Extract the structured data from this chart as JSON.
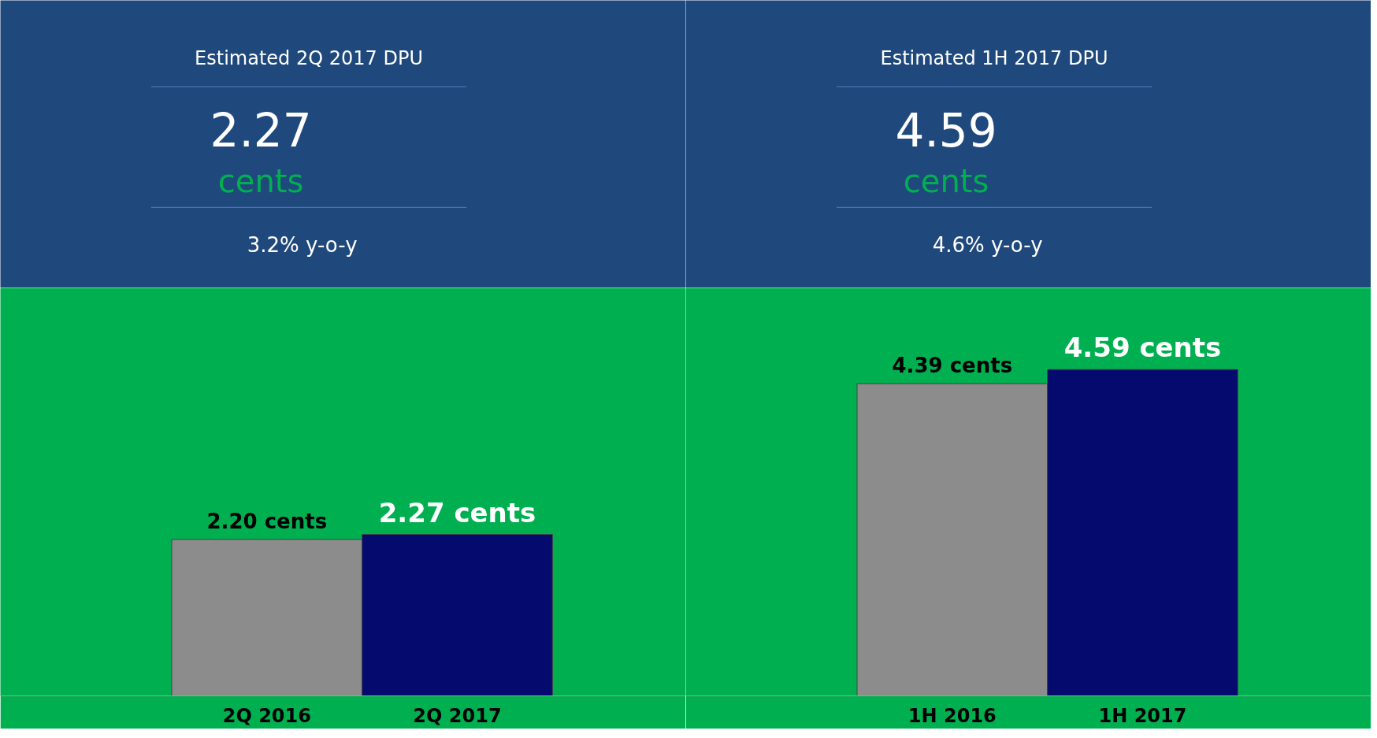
{
  "chart_data": [
    {
      "type": "other",
      "title": "Estimated 2Q 2017 DPU",
      "annotations": [
        "2.27",
        "cents",
        "3.2% y-o-y"
      ]
    },
    {
      "type": "other",
      "title": "Estimated 1H 2017 DPU",
      "annotations": [
        "4.59",
        "cents",
        "4.6% y-o-y"
      ]
    },
    {
      "type": "bar",
      "categories": [
        "2Q 2016",
        "2Q 2017"
      ],
      "values": [
        2.2,
        2.27
      ],
      "colors": [
        "#8c8c8c",
        "#050a6e"
      ],
      "value_labels": [
        "2.20 cents",
        "2.27 cents"
      ]
    },
    {
      "type": "bar",
      "categories": [
        "1H 2016",
        "1H 2017"
      ],
      "values": [
        4.39,
        4.59
      ],
      "colors": [
        "#8c8c8c",
        "#050a6e"
      ],
      "value_labels": [
        "4.39 cents",
        "4.59 cents"
      ]
    }
  ]
}
